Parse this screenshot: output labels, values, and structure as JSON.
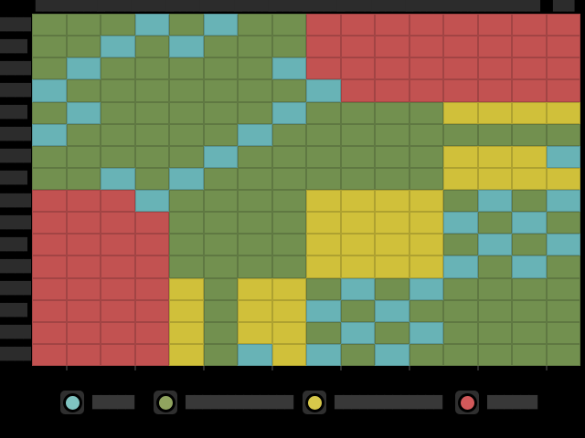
{
  "figure": {
    "background": "#000000",
    "text_color": "#2c2c2c"
  },
  "chart_data": {
    "type": "heatmap",
    "title": "",
    "grid": {
      "rows": 16,
      "cols": 16,
      "cells": [
        "GGGTGTGGRRRRRRRR",
        "GGTGTGGGRRRRRRRR",
        "GTGGGGGTRRRRRRRR",
        "TGGGGGGGTRRRRRRR",
        "GTGGGGGTGGGGYYYY",
        "TGGGGGTGGGGGGGGG",
        "GGGGGTGGGGGGYYYT",
        "GGTGTGGGGGGGYYYY",
        "RRRTGGGGYYYYGTGT",
        "RRRRGGGGYYYYTGTG",
        "RRRRGGGGYYYYGTGT",
        "RRRRGGGGYYYYTGTG",
        "RRRRYGYYGTGTGGGG",
        "RRRRYGYYTGTGGGGG",
        "RRRRYGYYGTGTGGGG",
        "RRRRYGTYTGTGGGGG"
      ]
    },
    "palette": {
      "T": "#68b3b6",
      "G": "#72904f",
      "Y": "#d0c03a",
      "R": "#c25251"
    },
    "legend_position": "bottom",
    "legend": [
      {
        "category": "teal",
        "color": "#7fc3c0",
        "label": "█████"
      },
      {
        "category": "green",
        "color": "#90a45f",
        "label": "█████████████"
      },
      {
        "category": "yellow",
        "color": "#d7c84a",
        "label": "█████████████"
      },
      {
        "category": "red",
        "color": "#d2595a",
        "label": "██████"
      }
    ],
    "axes": {
      "x_labels": [
        "████",
        "██████",
        "██████",
        "██████",
        "██████",
        "██████",
        "██████",
        "██████",
        "██████",
        "██████",
        "██████",
        "██████",
        "████",
        "███████",
        "███",
        "███"
      ],
      "y_labels": [
        "████",
        "███▌",
        "████",
        "████",
        "███▌",
        "████",
        "████",
        "███▌",
        "████",
        "████",
        "███▌",
        "████",
        "████",
        "███▌",
        "████",
        "████"
      ],
      "grid_lines": false,
      "x_tick_count": 8
    }
  }
}
